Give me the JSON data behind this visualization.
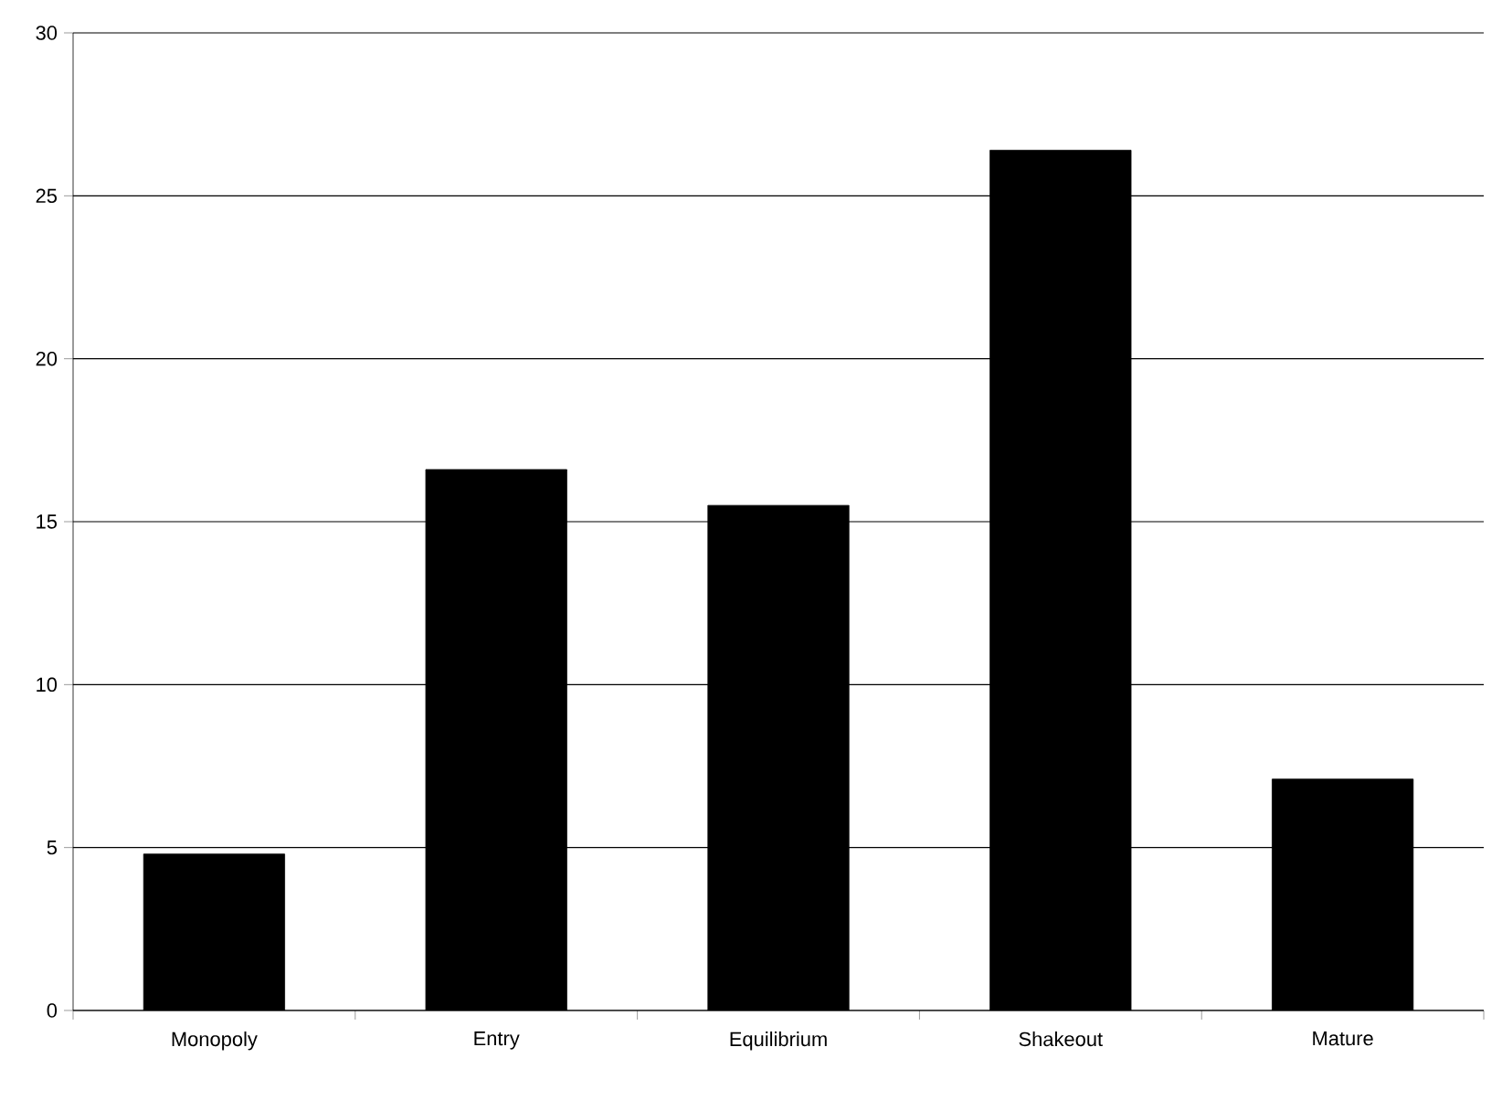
{
  "chart_data": {
    "type": "bar",
    "categories": [
      "Monopoly",
      "Entry",
      "Equilibrium",
      "Shakeout",
      "Mature"
    ],
    "values": [
      4.8,
      16.6,
      15.5,
      26.4,
      7.1
    ],
    "color": "#000000",
    "ylim": [
      0,
      30
    ],
    "yticks": [
      0,
      5,
      10,
      15,
      20,
      25,
      30
    ],
    "grid": "y"
  }
}
